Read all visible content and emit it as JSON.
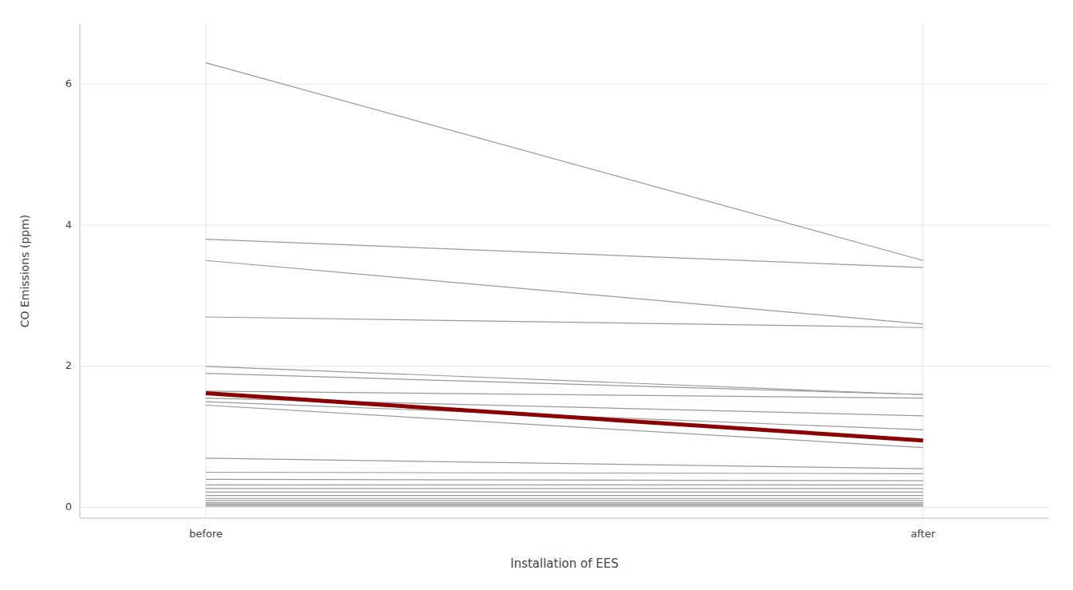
{
  "chart_data": {
    "type": "slope",
    "xlabel": "Installation of EES",
    "ylabel": "CO Emissions (ppm)",
    "categories": [
      "before",
      "after"
    ],
    "series": [
      {
        "values": [
          6.3,
          3.5
        ],
        "color": "#999999"
      },
      {
        "values": [
          3.8,
          3.4
        ],
        "color": "#999999"
      },
      {
        "values": [
          3.5,
          2.6
        ],
        "color": "#999999"
      },
      {
        "values": [
          2.7,
          2.55
        ],
        "color": "#999999"
      },
      {
        "values": [
          2.0,
          1.6
        ],
        "color": "#999999"
      },
      {
        "values": [
          1.9,
          1.6
        ],
        "color": "#999999"
      },
      {
        "values": [
          1.65,
          1.55
        ],
        "color": "#999999"
      },
      {
        "values": [
          1.55,
          1.3
        ],
        "color": "#999999"
      },
      {
        "values": [
          1.5,
          1.1
        ],
        "color": "#999999"
      },
      {
        "values": [
          1.45,
          0.85
        ],
        "color": "#999999"
      },
      {
        "values": [
          0.7,
          0.55
        ],
        "color": "#999999"
      },
      {
        "values": [
          0.5,
          0.48
        ],
        "color": "#999999"
      },
      {
        "values": [
          0.4,
          0.38
        ],
        "color": "#999999"
      },
      {
        "values": [
          0.32,
          0.32
        ],
        "color": "#999999"
      },
      {
        "values": [
          0.27,
          0.27
        ],
        "color": "#999999"
      },
      {
        "values": [
          0.22,
          0.22
        ],
        "color": "#999999"
      },
      {
        "values": [
          0.17,
          0.17
        ],
        "color": "#999999"
      },
      {
        "values": [
          0.13,
          0.13
        ],
        "color": "#999999"
      },
      {
        "values": [
          0.1,
          0.1
        ],
        "color": "#999999"
      },
      {
        "values": [
          0.07,
          0.07
        ],
        "color": "#999999"
      },
      {
        "values": [
          0.05,
          0.05
        ],
        "color": "#999999"
      },
      {
        "values": [
          0.03,
          0.03
        ],
        "color": "#999999"
      },
      {
        "values": [
          0.02,
          0.02
        ],
        "color": "#999999"
      },
      {
        "values": [
          1.62,
          0.95
        ],
        "color": "#8B0000"
      }
    ],
    "ylim": [
      -0.15,
      6.85
    ],
    "yticks": [
      0,
      2,
      4,
      6
    ],
    "grid": true
  }
}
